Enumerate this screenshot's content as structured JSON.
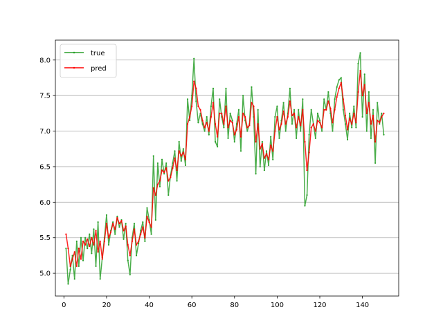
{
  "chart_data": {
    "type": "line",
    "title": "",
    "xlabel": "",
    "ylabel": "",
    "xlim": [
      -4,
      157
    ],
    "ylim": [
      4.68,
      8.28
    ],
    "xticks": [
      0,
      20,
      40,
      60,
      80,
      100,
      120,
      140
    ],
    "yticks": [
      5.0,
      5.5,
      6.0,
      6.5,
      7.0,
      7.5,
      8.0
    ],
    "ytick_labels": [
      "5.0",
      "5.5",
      "6.0",
      "6.5",
      "7.0",
      "7.5",
      "8.0"
    ],
    "grid": "horizontal",
    "legend": {
      "placement": "top-left"
    },
    "series": [
      {
        "name": "true",
        "color": "#2ca02c",
        "points": [
          [
            1,
            5.35
          ],
          [
            2,
            4.85
          ],
          [
            3,
            5.05
          ],
          [
            4,
            5.25
          ],
          [
            5,
            4.92
          ],
          [
            6,
            5.45
          ],
          [
            7,
            5.1
          ],
          [
            8,
            5.5
          ],
          [
            9,
            5.18
          ],
          [
            10,
            5.5
          ],
          [
            11,
            5.35
          ],
          [
            12,
            5.55
          ],
          [
            13,
            5.28
          ],
          [
            14,
            5.62
          ],
          [
            15,
            5.1
          ],
          [
            16,
            5.72
          ],
          [
            17,
            4.92
          ],
          [
            18,
            5.22
          ],
          [
            19,
            5.5
          ],
          [
            20,
            5.82
          ],
          [
            21,
            5.4
          ],
          [
            22,
            5.6
          ],
          [
            23,
            5.72
          ],
          [
            24,
            5.55
          ],
          [
            25,
            5.8
          ],
          [
            26,
            5.65
          ],
          [
            27,
            5.75
          ],
          [
            28,
            5.48
          ],
          [
            29,
            5.7
          ],
          [
            30,
            5.18
          ],
          [
            31,
            4.98
          ],
          [
            32,
            5.5
          ],
          [
            33,
            5.7
          ],
          [
            34,
            5.25
          ],
          [
            35,
            5.42
          ],
          [
            36,
            5.6
          ],
          [
            37,
            5.72
          ],
          [
            38,
            5.45
          ],
          [
            39,
            5.92
          ],
          [
            40,
            5.75
          ],
          [
            41,
            5.55
          ],
          [
            42,
            6.65
          ],
          [
            43,
            5.75
          ],
          [
            44,
            6.55
          ],
          [
            45,
            6.22
          ],
          [
            46,
            6.6
          ],
          [
            47,
            6.4
          ],
          [
            48,
            6.55
          ],
          [
            49,
            6.1
          ],
          [
            50,
            6.38
          ],
          [
            51,
            6.55
          ],
          [
            52,
            6.72
          ],
          [
            53,
            6.3
          ],
          [
            54,
            6.85
          ],
          [
            55,
            6.58
          ],
          [
            56,
            6.75
          ],
          [
            57,
            6.52
          ],
          [
            58,
            7.45
          ],
          [
            59,
            7.15
          ],
          [
            60,
            7.5
          ],
          [
            61,
            8.02
          ],
          [
            62,
            7.42
          ],
          [
            63,
            7.12
          ],
          [
            64,
            7.25
          ],
          [
            65,
            7.1
          ],
          [
            66,
            7.0
          ],
          [
            67,
            7.2
          ],
          [
            68,
            6.95
          ],
          [
            69,
            7.35
          ],
          [
            70,
            7.6
          ],
          [
            71,
            6.85
          ],
          [
            72,
            6.78
          ],
          [
            73,
            7.45
          ],
          [
            74,
            7.2
          ],
          [
            75,
            7.05
          ],
          [
            76,
            7.6
          ],
          [
            77,
            6.9
          ],
          [
            78,
            7.25
          ],
          [
            79,
            7.15
          ],
          [
            80,
            6.85
          ],
          [
            81,
            7.1
          ],
          [
            82,
            7.3
          ],
          [
            83,
            6.72
          ],
          [
            84,
            7.5
          ],
          [
            85,
            7.15
          ],
          [
            86,
            7.0
          ],
          [
            87,
            7.1
          ],
          [
            88,
            7.62
          ],
          [
            89,
            7.2
          ],
          [
            90,
            6.4
          ],
          [
            91,
            7.3
          ],
          [
            92,
            6.5
          ],
          [
            93,
            6.85
          ],
          [
            94,
            6.45
          ],
          [
            95,
            6.72
          ],
          [
            96,
            6.52
          ],
          [
            97,
            6.92
          ],
          [
            98,
            6.6
          ],
          [
            99,
            7.2
          ],
          [
            100,
            7.35
          ],
          [
            101,
            6.9
          ],
          [
            102,
            7.15
          ],
          [
            103,
            7.4
          ],
          [
            104,
            7.0
          ],
          [
            105,
            7.25
          ],
          [
            106,
            7.6
          ],
          [
            107,
            7.1
          ],
          [
            108,
            7.3
          ],
          [
            109,
            6.9
          ],
          [
            110,
            7.3
          ],
          [
            111,
            7.0
          ],
          [
            112,
            7.45
          ],
          [
            113,
            5.95
          ],
          [
            114,
            6.1
          ],
          [
            115,
            6.95
          ],
          [
            116,
            7.3
          ],
          [
            117,
            7.1
          ],
          [
            118,
            6.9
          ],
          [
            119,
            7.25
          ],
          [
            120,
            7.15
          ],
          [
            121,
            7.0
          ],
          [
            122,
            7.45
          ],
          [
            123,
            7.3
          ],
          [
            124,
            7.55
          ],
          [
            125,
            7.25
          ],
          [
            126,
            7.0
          ],
          [
            127,
            7.45
          ],
          [
            128,
            7.62
          ],
          [
            129,
            7.72
          ],
          [
            130,
            7.75
          ],
          [
            131,
            7.3
          ],
          [
            132,
            7.1
          ],
          [
            133,
            6.88
          ],
          [
            134,
            7.25
          ],
          [
            135,
            7.05
          ],
          [
            136,
            7.35
          ],
          [
            137,
            7.05
          ],
          [
            138,
            7.95
          ],
          [
            139,
            8.1
          ],
          [
            140,
            7.2
          ],
          [
            141,
            7.8
          ],
          [
            142,
            7.0
          ],
          [
            143,
            7.55
          ],
          [
            144,
            6.9
          ],
          [
            145,
            7.3
          ],
          [
            146,
            6.55
          ],
          [
            147,
            7.4
          ],
          [
            148,
            7.1
          ],
          [
            149,
            7.25
          ],
          [
            150,
            6.95
          ]
        ]
      },
      {
        "name": "pred",
        "color": "#ff0000",
        "points": [
          [
            1,
            5.55
          ],
          [
            2,
            5.35
          ],
          [
            3,
            5.1
          ],
          [
            4,
            5.2
          ],
          [
            5,
            5.3
          ],
          [
            6,
            5.1
          ],
          [
            7,
            5.35
          ],
          [
            8,
            5.2
          ],
          [
            9,
            5.45
          ],
          [
            10,
            5.4
          ],
          [
            11,
            5.48
          ],
          [
            12,
            5.38
          ],
          [
            13,
            5.5
          ],
          [
            14,
            5.4
          ],
          [
            15,
            5.6
          ],
          [
            16,
            5.3
          ],
          [
            17,
            5.45
          ],
          [
            18,
            5.2
          ],
          [
            19,
            5.45
          ],
          [
            20,
            5.7
          ],
          [
            21,
            5.5
          ],
          [
            22,
            5.58
          ],
          [
            23,
            5.7
          ],
          [
            24,
            5.62
          ],
          [
            25,
            5.78
          ],
          [
            26,
            5.7
          ],
          [
            27,
            5.74
          ],
          [
            28,
            5.6
          ],
          [
            29,
            5.66
          ],
          [
            30,
            5.4
          ],
          [
            31,
            5.25
          ],
          [
            32,
            5.45
          ],
          [
            33,
            5.62
          ],
          [
            34,
            5.4
          ],
          [
            35,
            5.45
          ],
          [
            36,
            5.55
          ],
          [
            37,
            5.65
          ],
          [
            38,
            5.5
          ],
          [
            39,
            5.8
          ],
          [
            40,
            5.72
          ],
          [
            41,
            5.65
          ],
          [
            42,
            6.2
          ],
          [
            43,
            6.1
          ],
          [
            44,
            6.25
          ],
          [
            45,
            6.3
          ],
          [
            46,
            6.45
          ],
          [
            47,
            6.42
          ],
          [
            48,
            6.48
          ],
          [
            49,
            6.3
          ],
          [
            50,
            6.35
          ],
          [
            51,
            6.48
          ],
          [
            52,
            6.62
          ],
          [
            53,
            6.45
          ],
          [
            54,
            6.72
          ],
          [
            55,
            6.65
          ],
          [
            56,
            6.7
          ],
          [
            57,
            6.6
          ],
          [
            58,
            7.1
          ],
          [
            59,
            7.2
          ],
          [
            60,
            7.35
          ],
          [
            61,
            7.7
          ],
          [
            62,
            7.6
          ],
          [
            63,
            7.35
          ],
          [
            64,
            7.3
          ],
          [
            65,
            7.15
          ],
          [
            66,
            7.05
          ],
          [
            67,
            7.12
          ],
          [
            68,
            7.0
          ],
          [
            69,
            7.2
          ],
          [
            70,
            7.4
          ],
          [
            71,
            7.1
          ],
          [
            72,
            6.92
          ],
          [
            73,
            7.25
          ],
          [
            74,
            7.25
          ],
          [
            75,
            7.1
          ],
          [
            76,
            7.35
          ],
          [
            77,
            7.05
          ],
          [
            78,
            7.15
          ],
          [
            79,
            7.12
          ],
          [
            80,
            6.95
          ],
          [
            81,
            7.02
          ],
          [
            82,
            7.2
          ],
          [
            83,
            6.92
          ],
          [
            84,
            7.25
          ],
          [
            85,
            7.2
          ],
          [
            86,
            7.05
          ],
          [
            87,
            7.08
          ],
          [
            88,
            7.4
          ],
          [
            89,
            7.35
          ],
          [
            90,
            6.85
          ],
          [
            91,
            7.1
          ],
          [
            92,
            6.75
          ],
          [
            93,
            6.82
          ],
          [
            94,
            6.62
          ],
          [
            95,
            6.68
          ],
          [
            96,
            6.6
          ],
          [
            97,
            6.8
          ],
          [
            98,
            6.72
          ],
          [
            99,
            7.0
          ],
          [
            100,
            7.2
          ],
          [
            101,
            7.02
          ],
          [
            102,
            7.1
          ],
          [
            103,
            7.28
          ],
          [
            104,
            7.1
          ],
          [
            105,
            7.2
          ],
          [
            106,
            7.42
          ],
          [
            107,
            7.22
          ],
          [
            108,
            7.25
          ],
          [
            109,
            7.05
          ],
          [
            110,
            7.2
          ],
          [
            111,
            7.08
          ],
          [
            112,
            7.3
          ],
          [
            113,
            6.85
          ],
          [
            114,
            6.45
          ],
          [
            115,
            6.7
          ],
          [
            116,
            7.05
          ],
          [
            117,
            7.1
          ],
          [
            118,
            7.0
          ],
          [
            119,
            7.15
          ],
          [
            120,
            7.12
          ],
          [
            121,
            7.05
          ],
          [
            122,
            7.3
          ],
          [
            123,
            7.3
          ],
          [
            124,
            7.42
          ],
          [
            125,
            7.32
          ],
          [
            126,
            7.12
          ],
          [
            127,
            7.3
          ],
          [
            128,
            7.48
          ],
          [
            129,
            7.6
          ],
          [
            130,
            7.68
          ],
          [
            131,
            7.45
          ],
          [
            132,
            7.22
          ],
          [
            133,
            7.02
          ],
          [
            134,
            7.18
          ],
          [
            135,
            7.1
          ],
          [
            136,
            7.25
          ],
          [
            137,
            7.12
          ],
          [
            138,
            7.55
          ],
          [
            139,
            7.85
          ],
          [
            140,
            7.5
          ],
          [
            141,
            7.65
          ],
          [
            142,
            7.25
          ],
          [
            143,
            7.4
          ],
          [
            144,
            7.1
          ],
          [
            145,
            7.22
          ],
          [
            146,
            6.85
          ],
          [
            147,
            7.15
          ],
          [
            148,
            7.12
          ],
          [
            149,
            7.2
          ],
          [
            150,
            7.25
          ]
        ]
      }
    ]
  }
}
